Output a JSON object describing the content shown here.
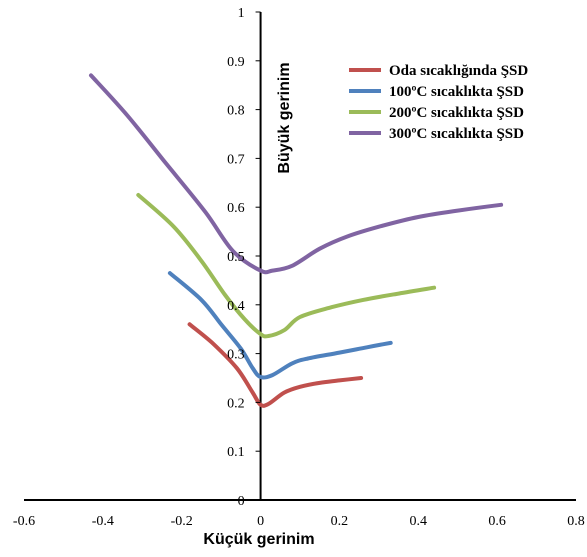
{
  "chart_data": {
    "type": "line",
    "xlabel": "Küçük gerinim",
    "ylabel": "Büyük gerinim",
    "xlim": [
      -0.6,
      0.8
    ],
    "ylim": [
      0,
      1
    ],
    "x_ticks": [
      "-0.6",
      "-0.4",
      "-0.2",
      "0",
      "0.2",
      "0.4",
      "0.6",
      "0.8"
    ],
    "y_ticks": [
      "0",
      "0.1",
      "0.2",
      "0.3",
      "0.4",
      "0.5",
      "0.6",
      "0.7",
      "0.8",
      "0.9",
      "1"
    ],
    "legend_position": "top-right",
    "grid": false,
    "series": [
      {
        "name": "Oda sıcaklığında ŞSD",
        "name_html": "Oda sıcaklığında ŞSD",
        "color": "#c0504d",
        "points": [
          [
            -0.18,
            0.36
          ],
          [
            -0.12,
            0.32
          ],
          [
            -0.06,
            0.27
          ],
          [
            -0.02,
            0.22
          ],
          [
            0.0,
            0.195
          ],
          [
            0.02,
            0.197
          ],
          [
            0.06,
            0.22
          ],
          [
            0.1,
            0.232
          ],
          [
            0.15,
            0.24
          ],
          [
            0.2,
            0.245
          ],
          [
            0.255,
            0.25
          ]
        ]
      },
      {
        "name": "100ºC sıcaklıkta ŞSD",
        "name_html": "100ºC sıcaklıkta ŞSD",
        "color": "#4f81bd",
        "points": [
          [
            -0.23,
            0.465
          ],
          [
            -0.15,
            0.41
          ],
          [
            -0.1,
            0.36
          ],
          [
            -0.05,
            0.31
          ],
          [
            -0.02,
            0.27
          ],
          [
            0.0,
            0.252
          ],
          [
            0.03,
            0.256
          ],
          [
            0.08,
            0.28
          ],
          [
            0.12,
            0.29
          ],
          [
            0.2,
            0.302
          ],
          [
            0.27,
            0.313
          ],
          [
            0.33,
            0.322
          ]
        ]
      },
      {
        "name": "200ºC sıcaklıkta ŞSD",
        "name_html": "200ºC sıcaklıkta ŞSD",
        "color": "#9bbb59",
        "points": [
          [
            -0.31,
            0.625
          ],
          [
            -0.22,
            0.56
          ],
          [
            -0.15,
            0.49
          ],
          [
            -0.09,
            0.42
          ],
          [
            -0.04,
            0.37
          ],
          [
            0.0,
            0.34
          ],
          [
            0.02,
            0.336
          ],
          [
            0.06,
            0.348
          ],
          [
            0.1,
            0.375
          ],
          [
            0.18,
            0.395
          ],
          [
            0.26,
            0.41
          ],
          [
            0.35,
            0.423
          ],
          [
            0.44,
            0.435
          ]
        ]
      },
      {
        "name": "300ºC sıcaklıkta ŞSD",
        "name_html": "300ºC sıcaklıkta ŞSD",
        "color": "#8064a2",
        "points": [
          [
            -0.43,
            0.87
          ],
          [
            -0.34,
            0.79
          ],
          [
            -0.24,
            0.69
          ],
          [
            -0.14,
            0.59
          ],
          [
            -0.07,
            0.51
          ],
          [
            0.0,
            0.47
          ],
          [
            0.03,
            0.47
          ],
          [
            0.08,
            0.48
          ],
          [
            0.15,
            0.515
          ],
          [
            0.22,
            0.54
          ],
          [
            0.3,
            0.56
          ],
          [
            0.4,
            0.58
          ],
          [
            0.5,
            0.593
          ],
          [
            0.61,
            0.605
          ]
        ]
      }
    ]
  }
}
